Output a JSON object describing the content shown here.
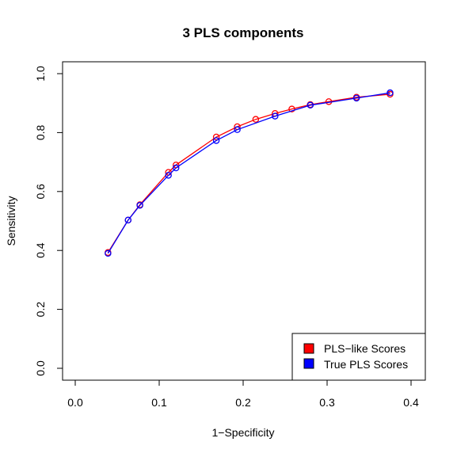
{
  "chart_data": {
    "type": "line",
    "title": "3 PLS components",
    "xlabel": "1−Specificity",
    "ylabel": "Sensitivity",
    "xlim": [
      0.0,
      0.4
    ],
    "ylim": [
      0.0,
      1.0
    ],
    "x_ticks": [
      "0.0",
      "0.1",
      "0.2",
      "0.3",
      "0.4"
    ],
    "y_ticks": [
      "0.0",
      "0.2",
      "0.4",
      "0.6",
      "0.8",
      "1.0"
    ],
    "grid": false,
    "legend_position": "bottom-right",
    "series": [
      {
        "name": "PLS−like Scores",
        "color": "#ff0000",
        "x": [
          0.039,
          0.063,
          0.077,
          0.111,
          0.12,
          0.168,
          0.193,
          0.215,
          0.238,
          0.258,
          0.28,
          0.302,
          0.335,
          0.375
        ],
        "y": [
          0.393,
          0.503,
          0.555,
          0.665,
          0.69,
          0.785,
          0.82,
          0.845,
          0.865,
          0.88,
          0.895,
          0.905,
          0.92,
          0.93
        ]
      },
      {
        "name": "True PLS Scores",
        "color": "#0000ff",
        "x": [
          0.039,
          0.063,
          0.077,
          0.111,
          0.12,
          0.168,
          0.193,
          0.238,
          0.28,
          0.335,
          0.375
        ],
        "y": [
          0.39,
          0.503,
          0.553,
          0.655,
          0.68,
          0.773,
          0.81,
          0.856,
          0.893,
          0.917,
          0.935
        ]
      }
    ]
  }
}
